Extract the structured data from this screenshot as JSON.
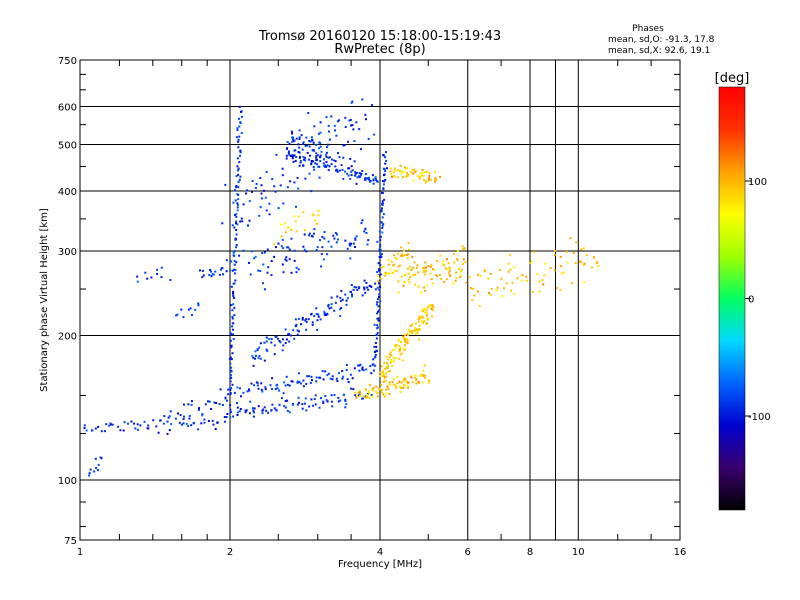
{
  "chart_data": {
    "type": "scatter",
    "title": "Tromsø 20160120 15:18:00-15:19:43",
    "subtitle": "RwPretec (8p)",
    "xlabel": "Frequency [MHz]",
    "ylabel": "Stationary phase Virtual Height [km]",
    "x_scale": "log",
    "y_scale": "log",
    "xlim": [
      1,
      16
    ],
    "ylim": [
      75,
      750
    ],
    "x_ticks": [
      1,
      2,
      4,
      6,
      8,
      10,
      16
    ],
    "x_tick_labels": [
      "1",
      "2",
      "4",
      "6",
      "8",
      "10",
      "16"
    ],
    "x_minor_gridlines": [
      9
    ],
    "y_ticks": [
      75,
      100,
      200,
      300,
      400,
      500,
      600,
      750
    ],
    "y_tick_labels": [
      "75",
      "100",
      "200",
      "300",
      "400",
      "500",
      "600",
      "750"
    ],
    "y_minor_ticks": [
      125,
      150
    ],
    "grid": true,
    "annotation": {
      "header": "Phases",
      "line1": "mean, sd,O: -91.3, 17.8",
      "line2": "mean, sd,X:  92.6, 19.1"
    },
    "colorbar": {
      "label": "[deg]",
      "range": [
        -180,
        180
      ],
      "ticks": [
        100,
        0,
        -100
      ],
      "tick_labels": [
        "100",
        "0",
        "-100"
      ],
      "colormap": [
        "#000000",
        "#3a006e",
        "#0000d0",
        "#0064ff",
        "#00d8ff",
        "#00ff60",
        "#a0ff00",
        "#ffff00",
        "#ffa000",
        "#ff3000",
        "#ff0000"
      ]
    },
    "series": [
      {
        "mode": "O",
        "phase_mean": -91.3,
        "phase_sd": 17.8,
        "traces": [
          {
            "f0": 1.02,
            "f1": 1.95,
            "h0": 128,
            "h1": 132,
            "n": 60,
            "spread": 0.012
          },
          {
            "f0": 1.95,
            "f1": 3.8,
            "h0": 138,
            "h1": 150,
            "n": 90,
            "spread": 0.015
          },
          {
            "f0": 2.0,
            "f1": 3.9,
            "h0": 150,
            "h1": 172,
            "n": 90,
            "spread": 0.015
          },
          {
            "f0": 1.5,
            "f1": 2.0,
            "h0": 132,
            "h1": 150,
            "n": 30,
            "spread": 0.02
          },
          {
            "f0": 2.0,
            "f1": 2.1,
            "h0": 150,
            "h1": 600,
            "n": 110,
            "spread": 0.008
          },
          {
            "f0": 2.2,
            "f1": 3.9,
            "h0": 180,
            "h1": 260,
            "n": 120,
            "spread": 0.018
          },
          {
            "f0": 3.9,
            "f1": 4.1,
            "h0": 170,
            "h1": 480,
            "n": 100,
            "spread": 0.008
          },
          {
            "f0": 2.6,
            "f1": 3.6,
            "h0": 480,
            "h1": 440,
            "n": 80,
            "spread": 0.018
          },
          {
            "f0": 3.6,
            "f1": 3.95,
            "h0": 430,
            "h1": 420,
            "n": 30,
            "spread": 0.012
          },
          {
            "f0": 2.6,
            "f1": 3.2,
            "h0": 520,
            "h1": 470,
            "n": 40,
            "spread": 0.02
          },
          {
            "f0": 1.75,
            "f1": 2.0,
            "h0": 270,
            "h1": 280,
            "n": 20,
            "spread": 0.015
          },
          {
            "f0": 1.55,
            "f1": 1.75,
            "h0": 220,
            "h1": 230,
            "n": 10,
            "spread": 0.015
          },
          {
            "f0": 1.3,
            "f1": 1.5,
            "h0": 265,
            "h1": 270,
            "n": 10,
            "spread": 0.015
          },
          {
            "f0": 2.2,
            "f1": 3.8,
            "h0": 280,
            "h1": 330,
            "n": 90,
            "spread": 0.04
          },
          {
            "f0": 1.05,
            "f1": 1.1,
            "h0": 105,
            "h1": 110,
            "n": 10,
            "spread": 0.02
          },
          {
            "f0": 2.0,
            "f1": 3.8,
            "h0": 350,
            "h1": 600,
            "n": 110,
            "spread": 0.06
          }
        ]
      },
      {
        "mode": "X",
        "phase_mean": 92.6,
        "phase_sd": 19.1,
        "traces": [
          {
            "f0": 3.6,
            "f1": 5.0,
            "h0": 150,
            "h1": 165,
            "n": 90,
            "spread": 0.015
          },
          {
            "f0": 4.0,
            "f1": 5.1,
            "h0": 165,
            "h1": 230,
            "n": 130,
            "spread": 0.02
          },
          {
            "f0": 4.2,
            "f1": 5.2,
            "h0": 440,
            "h1": 425,
            "n": 60,
            "spread": 0.012
          },
          {
            "f0": 4.4,
            "f1": 6.0,
            "h0": 260,
            "h1": 285,
            "n": 90,
            "spread": 0.03
          },
          {
            "f0": 6.0,
            "f1": 11.0,
            "h0": 250,
            "h1": 290,
            "n": 80,
            "spread": 0.04
          },
          {
            "f0": 4.0,
            "f1": 4.6,
            "h0": 270,
            "h1": 300,
            "n": 40,
            "spread": 0.02
          },
          {
            "f0": 2.5,
            "f1": 3.0,
            "h0": 320,
            "h1": 360,
            "n": 20,
            "spread": 0.03
          }
        ]
      }
    ]
  }
}
